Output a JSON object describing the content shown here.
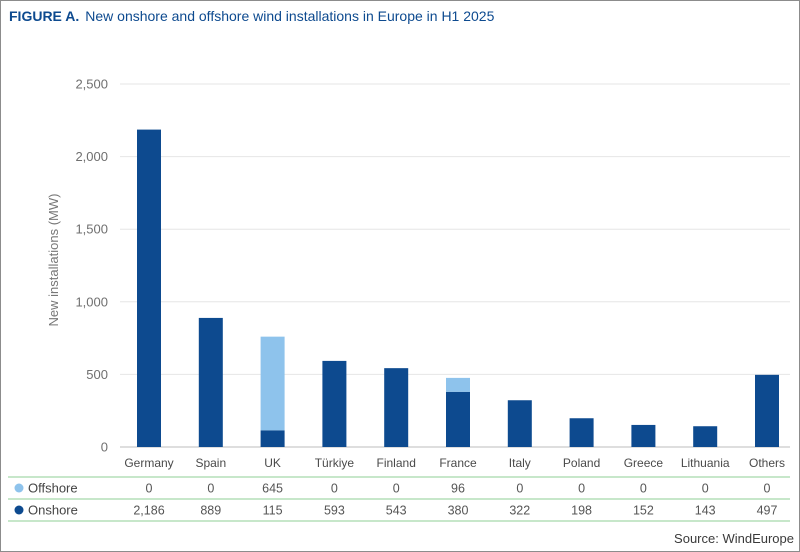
{
  "figure": {
    "label": "FIGURE A.",
    "title": "New onshore and offshore wind installations in Europe in H1 2025",
    "source": "Source: WindEurope"
  },
  "chart_data": {
    "type": "bar",
    "stacked": true,
    "title": "New onshore and offshore wind installations in Europe in H1 2025",
    "xlabel": "",
    "ylabel": "New installations (MW)",
    "ylim": [
      0,
      2500
    ],
    "yticks": [
      0,
      500,
      1000,
      1500,
      2000,
      2500
    ],
    "ytick_labels": [
      "0",
      "500",
      "1,000",
      "1,500",
      "2,000",
      "2,500"
    ],
    "categories": [
      "Germany",
      "Spain",
      "UK",
      "Türkiye",
      "Finland",
      "France",
      "Italy",
      "Poland",
      "Greece",
      "Lithuania",
      "Others"
    ],
    "series": [
      {
        "name": "Offshore",
        "color": "#8ec3ec",
        "values": [
          0,
          0,
          645,
          0,
          0,
          96,
          0,
          0,
          0,
          0,
          0
        ],
        "labels": [
          "0",
          "0",
          "645",
          "0",
          "0",
          "96",
          "0",
          "0",
          "0",
          "0",
          "0"
        ]
      },
      {
        "name": "Onshore",
        "color": "#0d4a8f",
        "values": [
          2186,
          889,
          115,
          593,
          543,
          380,
          322,
          198,
          152,
          143,
          497
        ],
        "labels": [
          "2,186",
          "889",
          "115",
          "593",
          "543",
          "380",
          "322",
          "198",
          "152",
          "143",
          "497"
        ]
      }
    ],
    "legend": "table-below"
  }
}
